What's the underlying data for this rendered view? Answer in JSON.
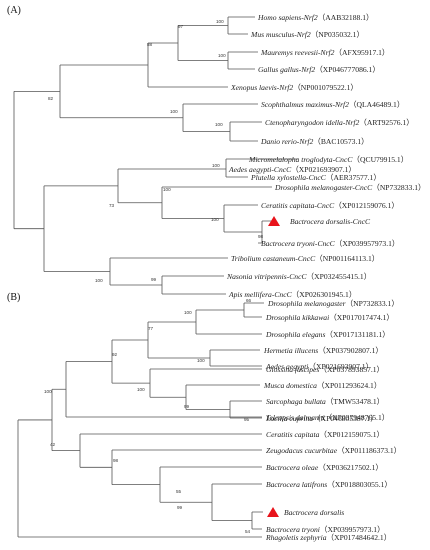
{
  "panel_a": {
    "label": "(A)",
    "taxa": [
      {
        "name": "Homo sapiens-Nrf2",
        "acc": "（AAB32188.1）"
      },
      {
        "name": "Mus musculus-Nrf2",
        "acc": "（NP035032.1）"
      },
      {
        "name": "Mauremys reevesii-Nrf2",
        "acc": "（AFX95917.1）"
      },
      {
        "name": "Gallus gallus-Nrf2",
        "acc": "（XP046777086.1）"
      },
      {
        "name": "Xenopus laevis-Nrf2",
        "acc": "（NP001079522.1）"
      },
      {
        "name": "Scophthalmus maximus-Nrf2",
        "acc": "（QLA46489.1）"
      },
      {
        "name": "Ctenopharyngodon idella-Nrf2",
        "acc": "（ART92576.1）"
      },
      {
        "name": "Danio rerio-Nrf2",
        "acc": "（BAC10573.1）"
      },
      {
        "name": "Micromelalopha troglodyta-CncC",
        "acc": "（QCU79915.1）"
      },
      {
        "name": "Plutella xylostella-CncC",
        "acc": "（AER37577.1）"
      },
      {
        "name": "Aedes aegypti-CncC",
        "acc": "（XP021693907.1）"
      },
      {
        "name": "Drosophila melanogaster-CncC",
        "acc": "（NP732833.1）"
      },
      {
        "name": "Ceratitis capitata-CncC",
        "acc": "（XP012159076.1）"
      },
      {
        "name": "Bactrocera dorsalis-CncC",
        "acc": ""
      },
      {
        "name": "Bactrocera tryoni-CncC",
        "acc": "（XP039957973.1）"
      },
      {
        "name": "Tribolium castaneum-CncC",
        "acc": "（NP001164113.1）"
      },
      {
        "name": "Nasonia vitripennis-CncC",
        "acc": "（XP032455415.1）"
      },
      {
        "name": "Apis mellifera-CncC",
        "acc": "（XP026301945.1）"
      }
    ],
    "bootstrap": [
      "100",
      "97",
      "88",
      "100",
      "100",
      "100",
      "82",
      "100",
      "100",
      "73",
      "100",
      "98",
      "100",
      "99"
    ]
  },
  "panel_b": {
    "label": "(B)",
    "taxa": [
      {
        "name": "Drosophila melanogaster",
        "acc": "（NP732833.1）"
      },
      {
        "name": "Drosophila kikkawai",
        "acc": "（XP017017474.1）"
      },
      {
        "name": "Drosophila elegans",
        "acc": "（XP017131181.1）"
      },
      {
        "name": "Hermetia illucens",
        "acc": "（XP037902807.1）"
      },
      {
        "name": "Aedes aegypti",
        "acc": "（XP021693907.1）"
      },
      {
        "name": "Glossina fuscipes",
        "acc": "（XP037893857.1）"
      },
      {
        "name": "Musca domestica",
        "acc": "（XP011293624.1）"
      },
      {
        "name": "Sarcophaga bullata",
        "acc": "（TMW53478.1）"
      },
      {
        "name": "Lucilia cuprina",
        "acc": "（XP046805387.1）"
      },
      {
        "name": "Teleopsis dalmanni",
        "acc": "（XP037948765.1）"
      },
      {
        "name": "Ceratitis capitata",
        "acc": "（XP012159075.1）"
      },
      {
        "name": "Zeugodacus cucurbitae",
        "acc": "（XP011186373.1）"
      },
      {
        "name": "Bactrocera oleae",
        "acc": "（XP036217502.1）"
      },
      {
        "name": "Bactrocera latifrons",
        "acc": "（XP018803055.1）"
      },
      {
        "name": "Bactrocera dorsalis",
        "acc": ""
      },
      {
        "name": "Bactrocera tryoni",
        "acc": "（XP039957973.1）"
      },
      {
        "name": "Rhagoletis zephyria",
        "acc": "（XP017484642.1）"
      }
    ],
    "bootstrap": [
      "66",
      "100",
      "77",
      "100",
      "92",
      "100",
      "99",
      "95",
      "100",
      "42",
      "98",
      "55",
      "99",
      "54"
    ]
  },
  "marker_color": "#e8131b"
}
